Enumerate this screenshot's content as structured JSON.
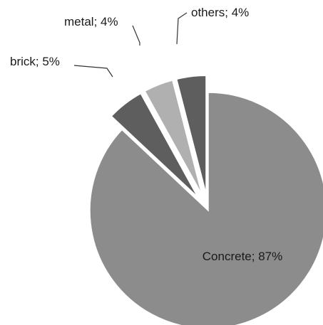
{
  "chart_data": {
    "type": "pie",
    "title": "",
    "slices": [
      {
        "label": "Concrete",
        "value": 87,
        "display": "Concrete; 87%",
        "color": "#8c8c8c"
      },
      {
        "label": "brick",
        "value": 5,
        "display": "brick; 5%",
        "color": "#5e5e5e"
      },
      {
        "label": "metal",
        "value": 4,
        "display": "metal; 4%",
        "color": "#b0b0b0"
      },
      {
        "label": "others",
        "value": 4,
        "display": "others; 4%",
        "color": "#5e5e5e"
      }
    ],
    "unit": "%",
    "legend": "none",
    "exploded": true
  }
}
